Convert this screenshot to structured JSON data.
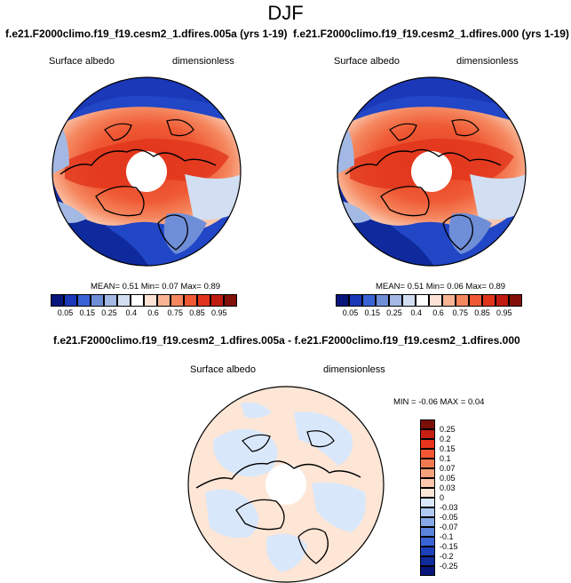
{
  "figure": {
    "title": "DJF"
  },
  "panels": [
    {
      "id": "case-005a",
      "title": "f.e21.F2000climo.f19_f19.cesm2_1.dfires.005a (yrs 1-19)",
      "left_label": "Surface albedo",
      "right_label": "dimensionless",
      "stats": {
        "mean_label": "MEAN=",
        "mean": "0.51",
        "min_label": "Min=",
        "min": "0.07",
        "max_label": "Max=",
        "max": "0.89"
      }
    },
    {
      "id": "case-000",
      "title": "f.e21.F2000climo.f19_f19.cesm2_1.dfires.000 (yrs 1-19)",
      "left_label": "Surface albedo",
      "right_label": "dimensionless",
      "stats": {
        "mean_label": "MEAN=",
        "mean": "0.51",
        "min_label": "Min=",
        "min": "0.06",
        "max_label": "Max=",
        "max": "0.89"
      }
    },
    {
      "id": "difference",
      "title": "f.e21.F2000climo.f19_f19.cesm2_1.dfires.005a - f.e21.F2000climo.f19_f19.cesm2_1.dfires.000",
      "left_label": "Surface albedo",
      "right_label": "dimensionless",
      "stats_text": "MIN =  -0.06  MAX =   0.04"
    }
  ],
  "colorbars": {
    "albedo": {
      "labels": [
        "0.05",
        "0.15",
        "0.25",
        "0.4",
        "0.6",
        "0.75",
        "0.85",
        "0.95"
      ],
      "colors": [
        "#08157a",
        "#1a38b8",
        "#3a63d6",
        "#6f8ed8",
        "#a3b9e4",
        "#d2def1",
        "#ffffff",
        "#fde3d6",
        "#f8b494",
        "#f5875f",
        "#ef5a34",
        "#e1341c",
        "#c01b10",
        "#821008"
      ]
    },
    "difference": {
      "labels": [
        "0.25",
        "0.2",
        "0.15",
        "0.1",
        "0.07",
        "0.05",
        "0.03",
        "0",
        "-0.03",
        "-0.05",
        "-0.07",
        "-0.1",
        "-0.15",
        "-0.2",
        "-0.25"
      ],
      "colors": [
        "#7a0f07",
        "#c81e12",
        "#e8341b",
        "#f25632",
        "#f37a50",
        "#f7a17c",
        "#fbc6ab",
        "#fde6d6",
        "#d9e7fa",
        "#b0c8f0",
        "#86a8e6",
        "#5b84dc",
        "#3a63d6",
        "#1e40bb",
        "#102c9c",
        "#08157a"
      ]
    }
  }
}
